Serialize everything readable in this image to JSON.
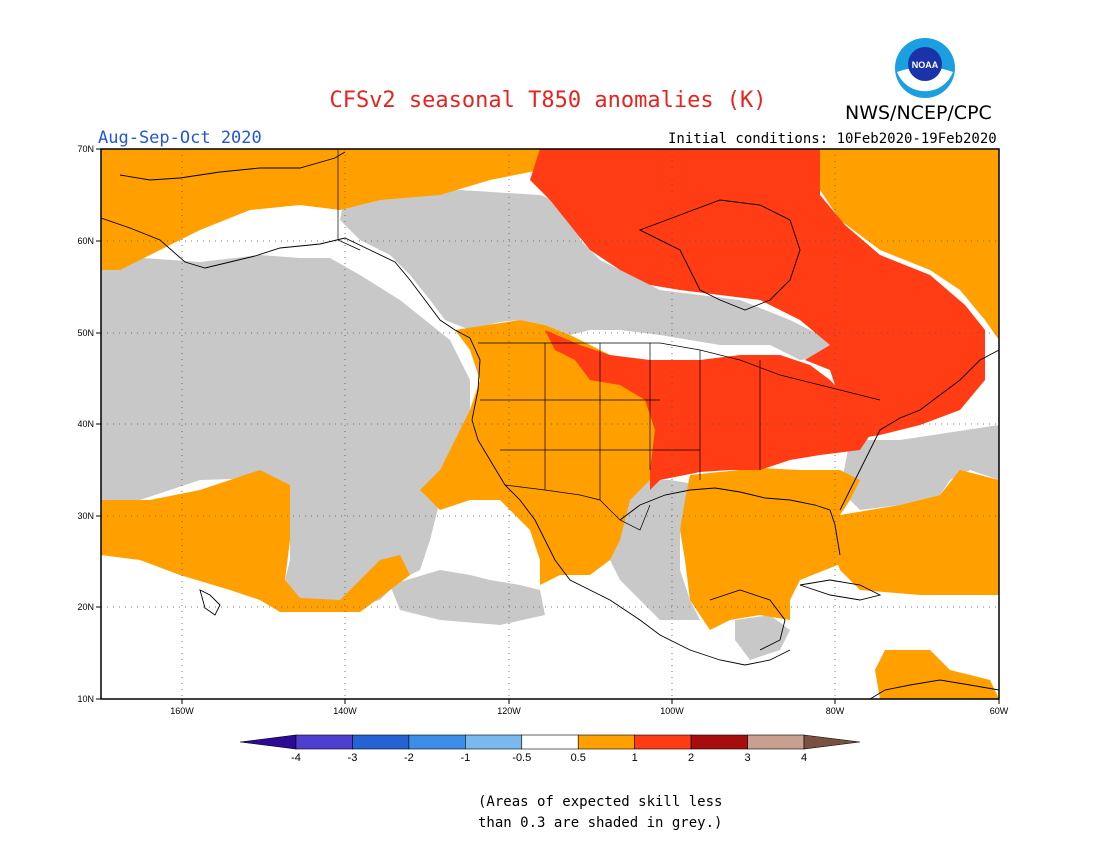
{
  "title": "CFSv2 seasonal T850 anomalies (K)",
  "org": "NWS/NCEP/CPC",
  "logo_text": "NOAA",
  "season": "Aug-Sep-Oct 2020",
  "initial_conditions": "Initial conditions: 10Feb2020-19Feb2020",
  "lat_labels": [
    "70N",
    "60N",
    "50N",
    "40N",
    "30N",
    "20N",
    "10N"
  ],
  "lon_labels": [
    "160W",
    "140W",
    "120W",
    "100W",
    "80W",
    "60W"
  ],
  "colorbar": {
    "tick_labels": [
      "-4",
      "-3",
      "-2",
      "-1",
      "-0.5",
      "0.5",
      "1",
      "2",
      "3",
      "4"
    ],
    "colors": [
      "#2d0a96",
      "#4f3fd0",
      "#2563d4",
      "#3d8ee8",
      "#7ab8f0",
      "#ffffff",
      "#ff9f00",
      "#ff3c14",
      "#a80d0d",
      "#c8a090",
      "#7a5040"
    ]
  },
  "footnote_line1": "(Areas of expected skill less",
  "footnote_line2": "than 0.3 are shaded in grey.)",
  "map_colors": {
    "grey": "#c8c8c8",
    "orange": "#ff9f00",
    "red": "#ff3c14",
    "white": "#ffffff"
  }
}
